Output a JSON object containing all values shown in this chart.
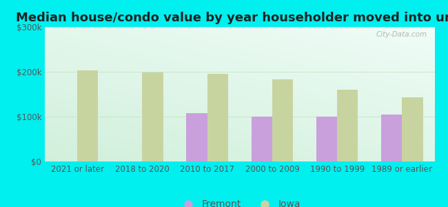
{
  "title": "Median house/condo value by year householder moved into unit",
  "categories": [
    "2021 or later",
    "2018 to 2020",
    "2010 to 2017",
    "2000 to 2009",
    "1990 to 1999",
    "1989 or earlier"
  ],
  "fremont_values": [
    0,
    0,
    108000,
    100000,
    100000,
    105000
  ],
  "iowa_values": [
    203000,
    198000,
    195000,
    183000,
    160000,
    143000
  ],
  "fremont_color": "#c9a0dc",
  "iowa_color": "#c8d4a0",
  "ylim": [
    0,
    300000
  ],
  "yticks": [
    0,
    100000,
    200000,
    300000
  ],
  "ytick_labels": [
    "$0",
    "$100k",
    "$200k",
    "$300k"
  ],
  "outer_bg": "#00efef",
  "watermark": "City-Data.com",
  "bar_width": 0.32,
  "legend_fremont": "Fremont",
  "legend_iowa": "Iowa",
  "title_fontsize": 13,
  "tick_fontsize": 8.5,
  "legend_fontsize": 10,
  "grid_color": "#c8e6c9",
  "axis_label_color": "#555555"
}
